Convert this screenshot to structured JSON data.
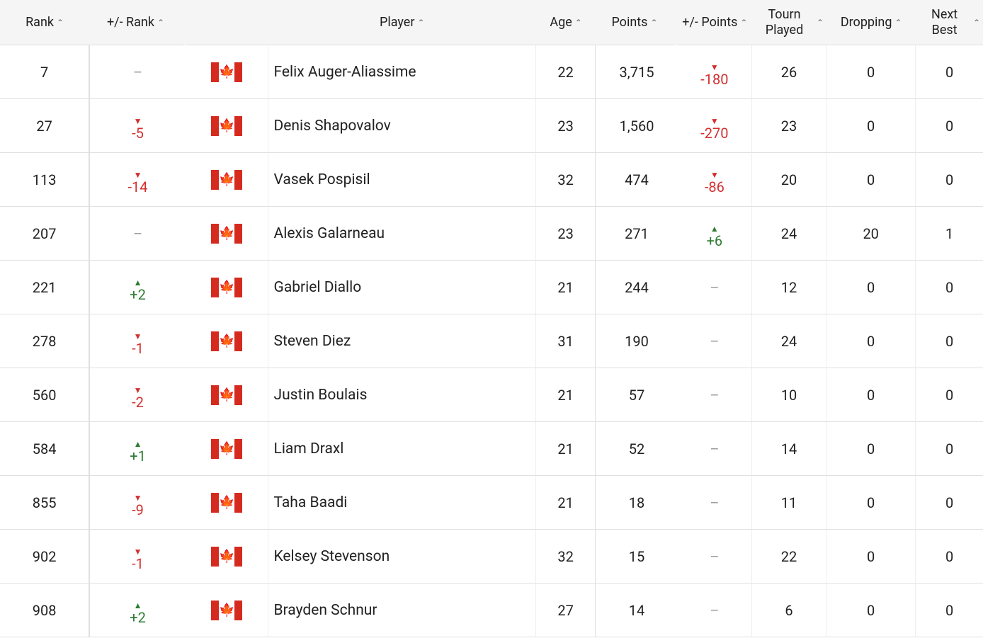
{
  "colors": {
    "up": "#2e7d32",
    "down": "#d32f2f",
    "neutral": "#9e9e9e",
    "header_bg": "#f5f5f5",
    "border": "#e0e0e0",
    "flag_red": "#d52b1e"
  },
  "columns": [
    {
      "key": "rank",
      "label": "Rank",
      "sortable": true
    },
    {
      "key": "rank_change",
      "label": "+/- Rank",
      "sortable": true
    },
    {
      "key": "player",
      "label": "Player",
      "sortable": true
    },
    {
      "key": "age",
      "label": "Age",
      "sortable": true
    },
    {
      "key": "points",
      "label": "Points",
      "sortable": true
    },
    {
      "key": "points_change",
      "label": "+/- Points",
      "sortable": true
    },
    {
      "key": "tourn",
      "label": "Tourn Played",
      "sortable": true
    },
    {
      "key": "dropping",
      "label": "Dropping",
      "sortable": true
    },
    {
      "key": "next_best",
      "label": "Next Best",
      "sortable": true
    }
  ],
  "country": {
    "code": "CA",
    "name": "Canada"
  },
  "rows": [
    {
      "rank": "7",
      "rank_change": {
        "dir": "none",
        "text": "–"
      },
      "player": "Felix Auger-Aliassime",
      "age": "22",
      "points": "3,715",
      "points_change": {
        "dir": "down",
        "text": "-180"
      },
      "tourn": "26",
      "dropping": "0",
      "next_best": "0"
    },
    {
      "rank": "27",
      "rank_change": {
        "dir": "down",
        "text": "-5"
      },
      "player": "Denis Shapovalov",
      "age": "23",
      "points": "1,560",
      "points_change": {
        "dir": "down",
        "text": "-270"
      },
      "tourn": "23",
      "dropping": "0",
      "next_best": "0"
    },
    {
      "rank": "113",
      "rank_change": {
        "dir": "down",
        "text": "-14"
      },
      "player": "Vasek Pospisil",
      "age": "32",
      "points": "474",
      "points_change": {
        "dir": "down",
        "text": "-86"
      },
      "tourn": "20",
      "dropping": "0",
      "next_best": "0"
    },
    {
      "rank": "207",
      "rank_change": {
        "dir": "none",
        "text": "–"
      },
      "player": "Alexis Galarneau",
      "age": "23",
      "points": "271",
      "points_change": {
        "dir": "up",
        "text": "+6"
      },
      "tourn": "24",
      "dropping": "20",
      "next_best": "1"
    },
    {
      "rank": "221",
      "rank_change": {
        "dir": "up",
        "text": "+2"
      },
      "player": "Gabriel Diallo",
      "age": "21",
      "points": "244",
      "points_change": {
        "dir": "none",
        "text": "–"
      },
      "tourn": "12",
      "dropping": "0",
      "next_best": "0"
    },
    {
      "rank": "278",
      "rank_change": {
        "dir": "down",
        "text": "-1"
      },
      "player": "Steven Diez",
      "age": "31",
      "points": "190",
      "points_change": {
        "dir": "none",
        "text": "–"
      },
      "tourn": "24",
      "dropping": "0",
      "next_best": "0"
    },
    {
      "rank": "560",
      "rank_change": {
        "dir": "down",
        "text": "-2"
      },
      "player": "Justin Boulais",
      "age": "21",
      "points": "57",
      "points_change": {
        "dir": "none",
        "text": "–"
      },
      "tourn": "10",
      "dropping": "0",
      "next_best": "0"
    },
    {
      "rank": "584",
      "rank_change": {
        "dir": "up",
        "text": "+1"
      },
      "player": "Liam Draxl",
      "age": "21",
      "points": "52",
      "points_change": {
        "dir": "none",
        "text": "–"
      },
      "tourn": "14",
      "dropping": "0",
      "next_best": "0"
    },
    {
      "rank": "855",
      "rank_change": {
        "dir": "down",
        "text": "-9"
      },
      "player": "Taha Baadi",
      "age": "21",
      "points": "18",
      "points_change": {
        "dir": "none",
        "text": "–"
      },
      "tourn": "11",
      "dropping": "0",
      "next_best": "0"
    },
    {
      "rank": "902",
      "rank_change": {
        "dir": "down",
        "text": "-1"
      },
      "player": "Kelsey Stevenson",
      "age": "32",
      "points": "15",
      "points_change": {
        "dir": "none",
        "text": "–"
      },
      "tourn": "22",
      "dropping": "0",
      "next_best": "0"
    },
    {
      "rank": "908",
      "rank_change": {
        "dir": "up",
        "text": "+2"
      },
      "player": "Brayden Schnur",
      "age": "27",
      "points": "14",
      "points_change": {
        "dir": "none",
        "text": "–"
      },
      "tourn": "6",
      "dropping": "0",
      "next_best": "0"
    }
  ]
}
